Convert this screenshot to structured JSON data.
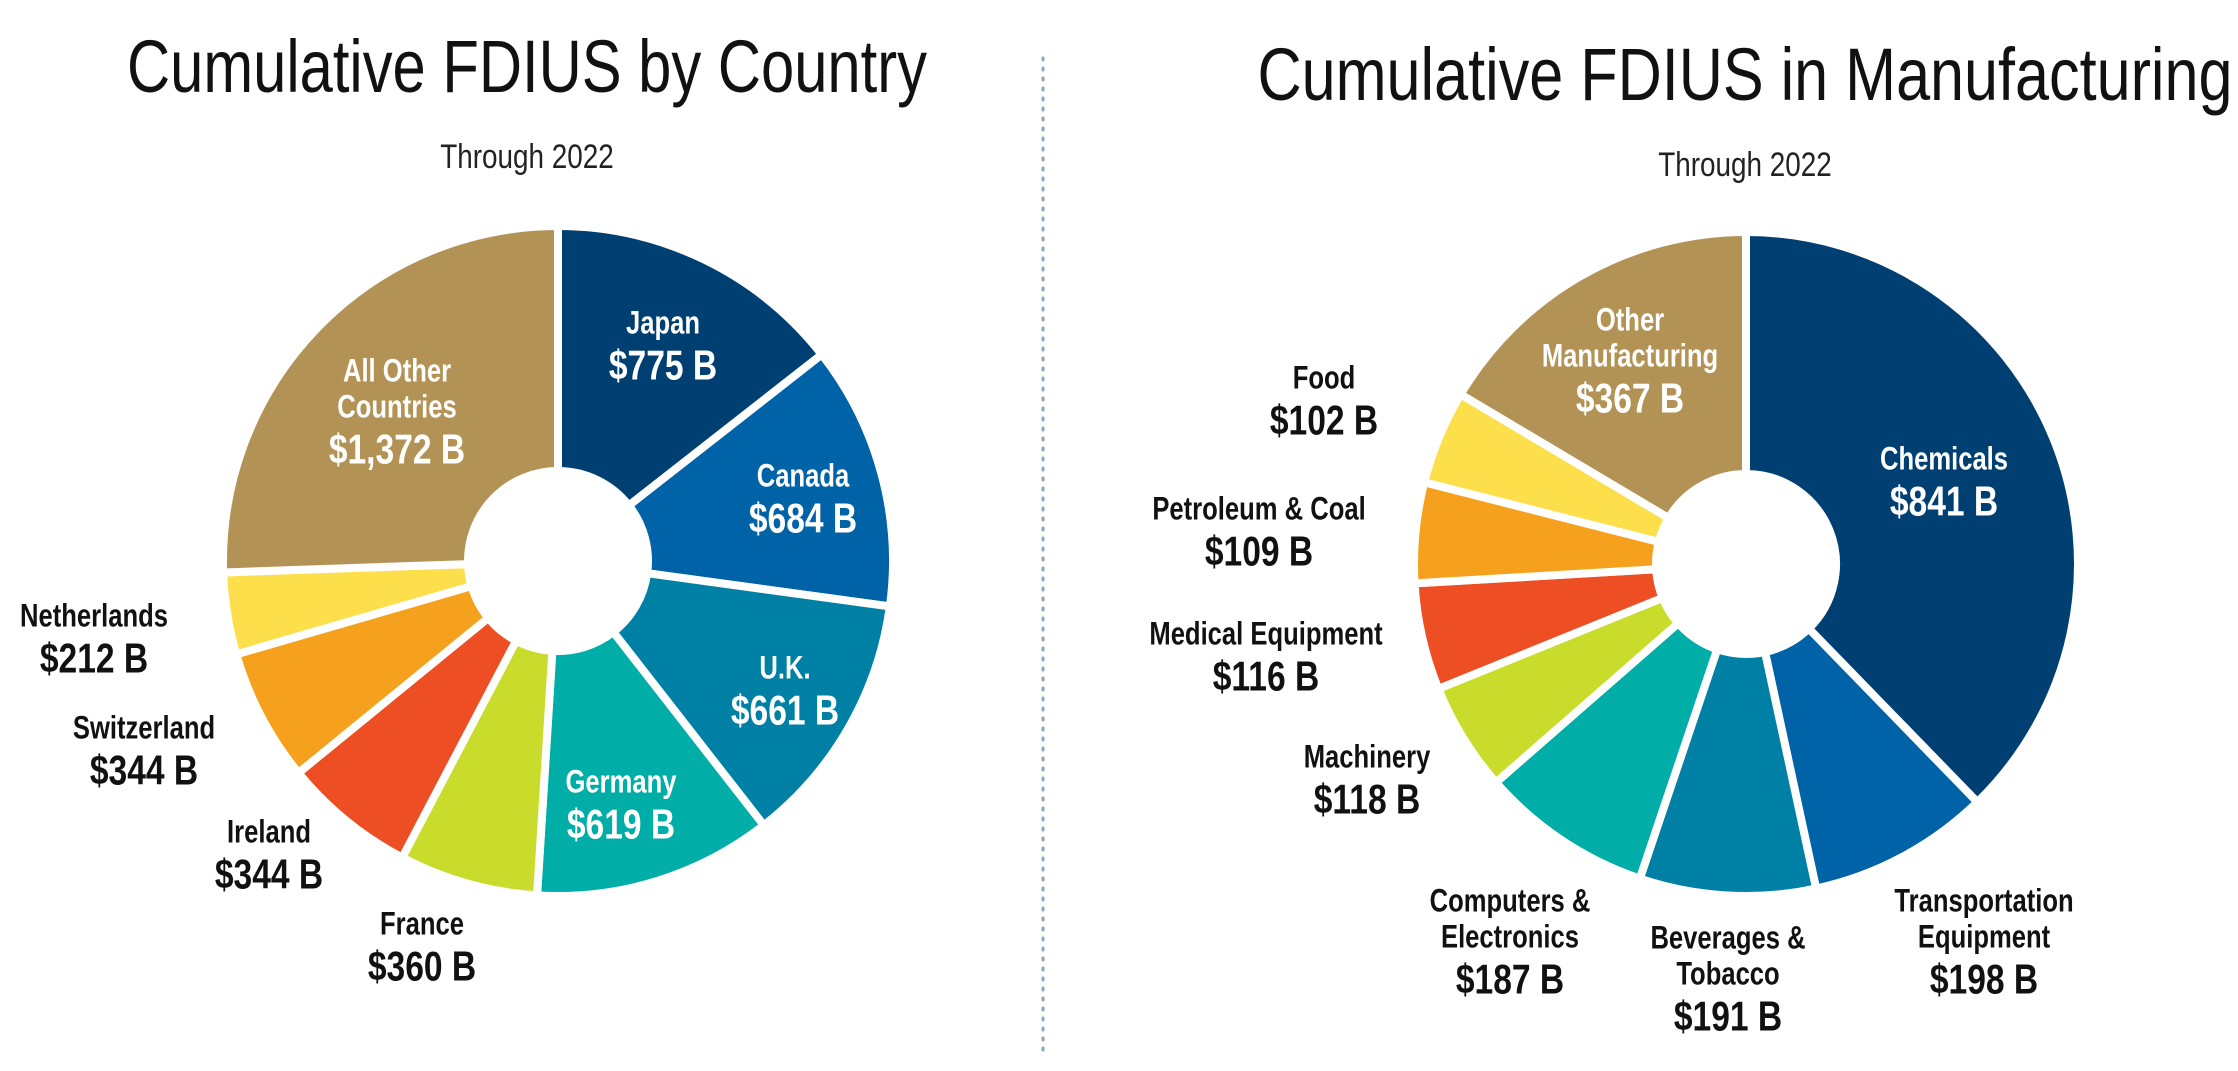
{
  "chart_data": [
    {
      "type": "donut",
      "title": "Cumulative FDIUS by Country",
      "subtitle": "Through 2022",
      "categories": [
        "Japan",
        "Canada",
        "U.K.",
        "Germany",
        "France",
        "Ireland",
        "Switzerland",
        "Netherlands",
        "All Other Countries"
      ],
      "values": [
        775,
        684,
        661,
        619,
        360,
        344,
        344,
        212,
        1372
      ],
      "value_labels": [
        "$775 B",
        "$684 B",
        "$661 B",
        "$619 B",
        "$360 B",
        "$344 B",
        "$344 B",
        "$212 B",
        "$1,372 B"
      ],
      "colors": [
        "#003f72",
        "#0062a7",
        "#0080a5",
        "#00aea7",
        "#c9dc2c",
        "#ee4e23",
        "#f6a11e",
        "#fddf4c",
        "#b39355"
      ]
    },
    {
      "type": "donut",
      "title": "Cumulative FDIUS in Manufacturing",
      "subtitle": "Through 2022",
      "categories": [
        "Chemicals",
        "Transportation Equipment",
        "Beverages & Tobacco",
        "Computers & Electronics",
        "Machinery",
        "Medical Equipment",
        "Petroleum & Coal",
        "Food",
        "Other Manufacturing"
      ],
      "values": [
        841,
        198,
        191,
        187,
        118,
        116,
        109,
        102,
        367
      ],
      "value_labels": [
        "$841 B",
        "$198 B",
        "$191 B",
        "$187 B",
        "$118 B",
        "$116 B",
        "$109 B",
        "$102 B",
        "$367 B"
      ],
      "colors": [
        "#003f72",
        "#0062a7",
        "#0080a5",
        "#00aea7",
        "#c9dc2c",
        "#ee4e23",
        "#f6a11e",
        "#fddf4c",
        "#b39355"
      ]
    }
  ]
}
